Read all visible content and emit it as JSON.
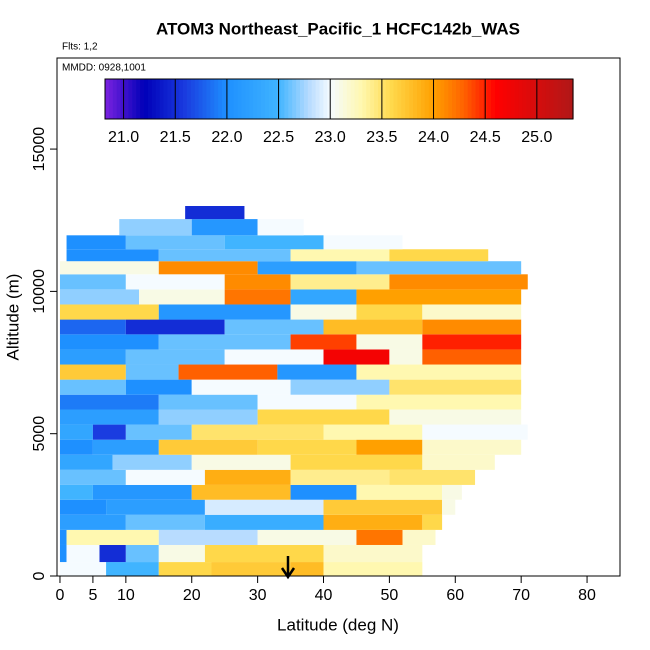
{
  "chart_data": {
    "type": "heatmap",
    "title": "ATOM3 Northeast_Pacific_1 HCFC142b_WAS",
    "subtitle": "Flts: 1,2",
    "annotation": "MMDD: 0928,1001",
    "x_label": "Latitude (deg N)",
    "y_label": "Altitude (m)",
    "xlim": [
      -0.45,
      85
    ],
    "ylim": [
      0,
      18200
    ],
    "xticks": [
      0,
      5,
      10,
      20,
      30,
      40,
      50,
      60,
      70,
      80
    ],
    "yticks": [
      0,
      5000,
      10000,
      15000
    ],
    "colorbar_ticks": [
      {
        "value": 21,
        "label": "21.0"
      },
      {
        "value": 21.5,
        "label": "21.5"
      },
      {
        "value": 22,
        "label": "22.0"
      },
      {
        "value": 22.5,
        "label": "22.5"
      },
      {
        "value": 23,
        "label": "23.0"
      },
      {
        "value": 23.5,
        "label": "23.5"
      },
      {
        "value": 24,
        "label": "24.0"
      },
      {
        "value": 24.5,
        "label": "24.5"
      },
      {
        "value": 25,
        "label": "25.0"
      }
    ],
    "colorscale": [
      [
        20.82,
        "#7b22e0"
      ],
      [
        21.2,
        "#0000b8"
      ],
      [
        21.6,
        "#1a3ce0"
      ],
      [
        22.0,
        "#1e90ff"
      ],
      [
        22.5,
        "#40b4ff"
      ],
      [
        22.8,
        "#b8dcff"
      ],
      [
        23.0,
        "#f5fbff"
      ],
      [
        23.3,
        "#fff8b0"
      ],
      [
        23.6,
        "#ffd84a"
      ],
      [
        24.0,
        "#ffa000"
      ],
      [
        24.3,
        "#ff6000"
      ],
      [
        24.6,
        "#ff0000"
      ],
      [
        25.35,
        "#b01818"
      ]
    ],
    "rows": [
      {
        "alt": [
          0,
          490
        ],
        "cells": [
          [
            0,
            7,
            23.0
          ],
          [
            7,
            15,
            22.5
          ],
          [
            15,
            23,
            23.6
          ],
          [
            23,
            35,
            23.7
          ],
          [
            35,
            40,
            23.8
          ],
          [
            40,
            55,
            23.3
          ]
        ]
      },
      {
        "alt": [
          490,
          1090
        ],
        "cells": [
          [
            0,
            1,
            22.0
          ],
          [
            1,
            6,
            23.0
          ],
          [
            6,
            10,
            21.5
          ],
          [
            10,
            15,
            22.6
          ],
          [
            15,
            22,
            23.1
          ],
          [
            22,
            40,
            23.6
          ],
          [
            40,
            55,
            23.2
          ]
        ]
      },
      {
        "alt": [
          1090,
          1620
        ],
        "cells": [
          [
            0,
            1,
            22.0
          ],
          [
            1,
            15,
            23.3
          ],
          [
            15,
            30,
            22.8
          ],
          [
            30,
            45,
            23.1
          ],
          [
            45,
            52,
            24.2
          ],
          [
            52,
            57,
            23.2
          ]
        ]
      },
      {
        "alt": [
          1620,
          2150
        ],
        "cells": [
          [
            0,
            10,
            22.2
          ],
          [
            10,
            22,
            22.6
          ],
          [
            22,
            40,
            22.4
          ],
          [
            40,
            55,
            23.9
          ],
          [
            55,
            58,
            23.6
          ]
        ]
      },
      {
        "alt": [
          2150,
          2680
        ],
        "cells": [
          [
            0,
            7,
            22.0
          ],
          [
            7,
            22,
            22.2
          ],
          [
            22,
            40,
            22.9
          ],
          [
            40,
            58,
            23.7
          ],
          [
            58,
            60,
            23.1
          ]
        ]
      },
      {
        "alt": [
          2680,
          3200
        ],
        "cells": [
          [
            0,
            5,
            22.5
          ],
          [
            5,
            20,
            22.1
          ],
          [
            20,
            35,
            23.8
          ],
          [
            35,
            45,
            22.0
          ],
          [
            45,
            58,
            23.3
          ],
          [
            58,
            61,
            23.1
          ]
        ]
      },
      {
        "alt": [
          3200,
          3730
        ],
        "cells": [
          [
            0,
            10,
            22.6
          ],
          [
            10,
            22,
            23.0
          ],
          [
            22,
            35,
            23.9
          ],
          [
            35,
            50,
            23.4
          ],
          [
            50,
            63,
            23.5
          ]
        ]
      },
      {
        "alt": [
          3730,
          4260
        ],
        "cells": [
          [
            0,
            8,
            22.3
          ],
          [
            8,
            20,
            22.7
          ],
          [
            20,
            35,
            23.1
          ],
          [
            35,
            55,
            23.6
          ],
          [
            55,
            66,
            23.2
          ]
        ]
      },
      {
        "alt": [
          4260,
          4790
        ],
        "cells": [
          [
            0,
            5,
            22.0
          ],
          [
            5,
            15,
            22.2
          ],
          [
            15,
            30,
            23.7
          ],
          [
            30,
            45,
            23.6
          ],
          [
            45,
            55,
            24.0
          ],
          [
            55,
            70,
            23.2
          ]
        ]
      },
      {
        "alt": [
          4790,
          5320
        ],
        "cells": [
          [
            0,
            5,
            22.3
          ],
          [
            5,
            10,
            21.6
          ],
          [
            10,
            20,
            22.6
          ],
          [
            20,
            40,
            23.5
          ],
          [
            40,
            55,
            23.3
          ],
          [
            55,
            71,
            23.0
          ]
        ]
      },
      {
        "alt": [
          5320,
          5850
        ],
        "cells": [
          [
            0,
            15,
            22.2
          ],
          [
            15,
            30,
            22.7
          ],
          [
            30,
            50,
            23.6
          ],
          [
            50,
            70,
            23.1
          ]
        ]
      },
      {
        "alt": [
          5850,
          6370
        ],
        "cells": [
          [
            0,
            15,
            21.9
          ],
          [
            15,
            30,
            22.6
          ],
          [
            30,
            45,
            23.0
          ],
          [
            45,
            70,
            23.3
          ]
        ]
      },
      {
        "alt": [
          6370,
          6900
        ],
        "cells": [
          [
            0,
            10,
            22.6
          ],
          [
            10,
            20,
            22.0
          ],
          [
            20,
            35,
            23.0
          ],
          [
            35,
            50,
            22.7
          ],
          [
            50,
            70,
            23.5
          ]
        ]
      },
      {
        "alt": [
          6900,
          7430
        ],
        "cells": [
          [
            0,
            10,
            23.7
          ],
          [
            10,
            18,
            22.6
          ],
          [
            18,
            33,
            24.3
          ],
          [
            33,
            45,
            22.1
          ],
          [
            45,
            70,
            23.3
          ]
        ]
      },
      {
        "alt": [
          7430,
          7960
        ],
        "cells": [
          [
            0,
            10,
            22.2
          ],
          [
            10,
            25,
            22.6
          ],
          [
            25,
            40,
            23.0
          ],
          [
            40,
            50,
            24.7
          ],
          [
            50,
            55,
            23.1
          ],
          [
            55,
            70,
            24.3
          ]
        ]
      },
      {
        "alt": [
          7960,
          8490
        ],
        "cells": [
          [
            0,
            15,
            22.0
          ],
          [
            15,
            35,
            22.6
          ],
          [
            35,
            45,
            24.4
          ],
          [
            45,
            55,
            23.1
          ],
          [
            55,
            70,
            24.5
          ]
        ]
      },
      {
        "alt": [
          8490,
          9010
        ],
        "cells": [
          [
            0,
            10,
            21.8
          ],
          [
            10,
            25,
            21.5
          ],
          [
            25,
            40,
            22.6
          ],
          [
            40,
            55,
            23.8
          ],
          [
            55,
            70,
            24.1
          ]
        ]
      },
      {
        "alt": [
          9010,
          9540
        ],
        "cells": [
          [
            0,
            15,
            23.6
          ],
          [
            15,
            35,
            22.1
          ],
          [
            35,
            45,
            23.1
          ],
          [
            45,
            55,
            23.6
          ],
          [
            55,
            70,
            23.2
          ]
        ]
      },
      {
        "alt": [
          9540,
          10070
        ],
        "cells": [
          [
            0,
            12,
            22.7
          ],
          [
            12,
            25,
            23.1
          ],
          [
            25,
            35,
            24.2
          ],
          [
            35,
            45,
            22.3
          ],
          [
            45,
            70,
            24.0
          ]
        ]
      },
      {
        "alt": [
          10070,
          10600
        ],
        "cells": [
          [
            0,
            10,
            22.6
          ],
          [
            10,
            25,
            23.0
          ],
          [
            25,
            35,
            24.1
          ],
          [
            35,
            50,
            23.4
          ],
          [
            50,
            71,
            24.1
          ]
        ]
      },
      {
        "alt": [
          10600,
          11060
        ],
        "cells": [
          [
            0,
            15,
            23.1
          ],
          [
            15,
            30,
            24.1
          ],
          [
            30,
            45,
            22.2
          ],
          [
            45,
            70,
            22.6
          ]
        ]
      },
      {
        "alt": [
          11060,
          11480
        ],
        "cells": [
          [
            1,
            15,
            22.0
          ],
          [
            15,
            35,
            22.6
          ],
          [
            35,
            50,
            23.3
          ],
          [
            50,
            65,
            23.6
          ]
        ]
      },
      {
        "alt": [
          11480,
          11970
        ],
        "cells": [
          [
            1,
            10,
            22.0
          ],
          [
            10,
            25,
            22.6
          ],
          [
            25,
            40,
            22.5
          ],
          [
            40,
            52,
            23.0
          ]
        ]
      },
      {
        "alt": [
          11970,
          12540
        ],
        "cells": [
          [
            9,
            20,
            22.7
          ],
          [
            20,
            30,
            22.1
          ],
          [
            30,
            37,
            23.0
          ]
        ]
      },
      {
        "alt": [
          12540,
          13000
        ],
        "cells": [
          [
            19,
            28,
            21.5
          ]
        ]
      }
    ]
  }
}
